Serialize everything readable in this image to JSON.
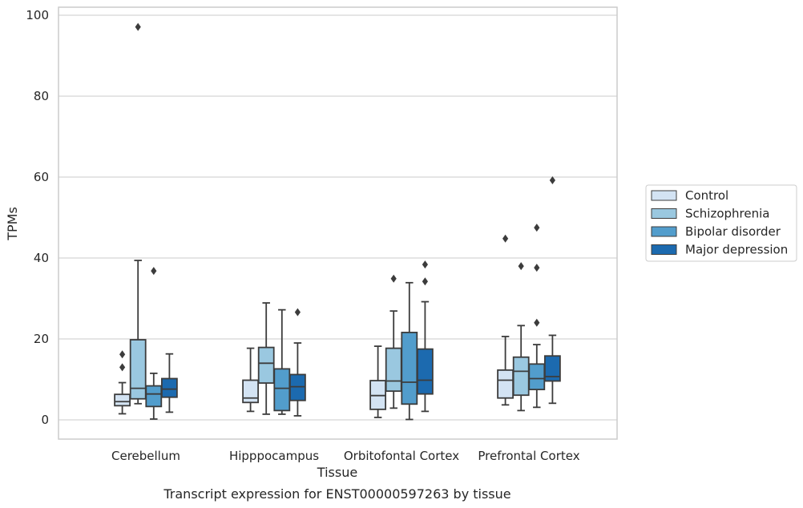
{
  "chart_data": {
    "type": "box",
    "title": "",
    "caption": "Transcript expression for ENST00000597263 by tissue",
    "xlabel": "Tissue",
    "ylabel": "TPMs",
    "ylim": [
      -4.5,
      102
    ],
    "yticks": [
      0,
      20,
      40,
      60,
      80,
      100
    ],
    "grid": true,
    "legend_position": "right",
    "categories": [
      "Cerebellum",
      "Hipppocampus",
      "Orbitofontal Cortex",
      "Prefrontal Cortex"
    ],
    "series": [
      {
        "name": "Control",
        "color": "#d3e3f3",
        "boxes": [
          {
            "whisker_low": 1.5,
            "q1": 3.5,
            "median": 4.5,
            "q3": 6.3,
            "whisker_high": 9.2,
            "outliers": [
              13,
              16.2
            ]
          },
          {
            "whisker_low": 2.1,
            "q1": 4.3,
            "median": 5.4,
            "q3": 9.8,
            "whisker_high": 17.7,
            "outliers": []
          },
          {
            "whisker_low": 0.6,
            "q1": 2.6,
            "median": 6.0,
            "q3": 9.7,
            "whisker_high": 18.2,
            "outliers": []
          },
          {
            "whisker_low": 3.7,
            "q1": 5.4,
            "median": 9.8,
            "q3": 12.3,
            "whisker_high": 20.6,
            "outliers": [
              44.8
            ]
          }
        ]
      },
      {
        "name": "Schizophrenia",
        "color": "#9ac8e0",
        "boxes": [
          {
            "whisker_low": 4.0,
            "q1": 5.2,
            "median": 7.8,
            "q3": 19.8,
            "whisker_high": 39.4,
            "outliers": [
              97.1
            ]
          },
          {
            "whisker_low": 1.4,
            "q1": 9.1,
            "median": 14.0,
            "q3": 17.9,
            "whisker_high": 28.9,
            "outliers": []
          },
          {
            "whisker_low": 2.9,
            "q1": 7.1,
            "median": 9.6,
            "q3": 17.7,
            "whisker_high": 26.9,
            "outliers": [
              34.9
            ]
          },
          {
            "whisker_low": 2.3,
            "q1": 6.1,
            "median": 12.0,
            "q3": 15.5,
            "whisker_high": 23.3,
            "outliers": [
              38.0
            ]
          }
        ]
      },
      {
        "name": "Bipolar disorder",
        "color": "#529dcc",
        "boxes": [
          {
            "whisker_low": 0.2,
            "q1": 3.3,
            "median": 6.4,
            "q3": 8.4,
            "whisker_high": 11.5,
            "outliers": [
              36.8
            ]
          },
          {
            "whisker_low": 1.4,
            "q1": 2.3,
            "median": 7.8,
            "q3": 12.6,
            "whisker_high": 27.2,
            "outliers": []
          },
          {
            "whisker_low": 0.1,
            "q1": 3.9,
            "median": 9.3,
            "q3": 21.6,
            "whisker_high": 33.9,
            "outliers": []
          },
          {
            "whisker_low": 3.1,
            "q1": 7.5,
            "median": 10.2,
            "q3": 13.8,
            "whisker_high": 18.6,
            "outliers": [
              24.0,
              37.6,
              47.5
            ]
          }
        ]
      },
      {
        "name": "Major depression",
        "color": "#1c6aaf",
        "boxes": [
          {
            "whisker_low": 1.9,
            "q1": 5.6,
            "median": 7.6,
            "q3": 10.2,
            "whisker_high": 16.3,
            "outliers": []
          },
          {
            "whisker_low": 1.0,
            "q1": 4.8,
            "median": 8.2,
            "q3": 11.2,
            "whisker_high": 19.0,
            "outliers": [
              26.6
            ]
          },
          {
            "whisker_low": 2.1,
            "q1": 6.4,
            "median": 9.8,
            "q3": 17.5,
            "whisker_high": 29.2,
            "outliers": [
              34.2,
              38.4
            ]
          },
          {
            "whisker_low": 4.1,
            "q1": 9.6,
            "median": 10.7,
            "q3": 15.8,
            "whisker_high": 20.9,
            "outliers": [
              59.2
            ]
          }
        ]
      }
    ]
  }
}
